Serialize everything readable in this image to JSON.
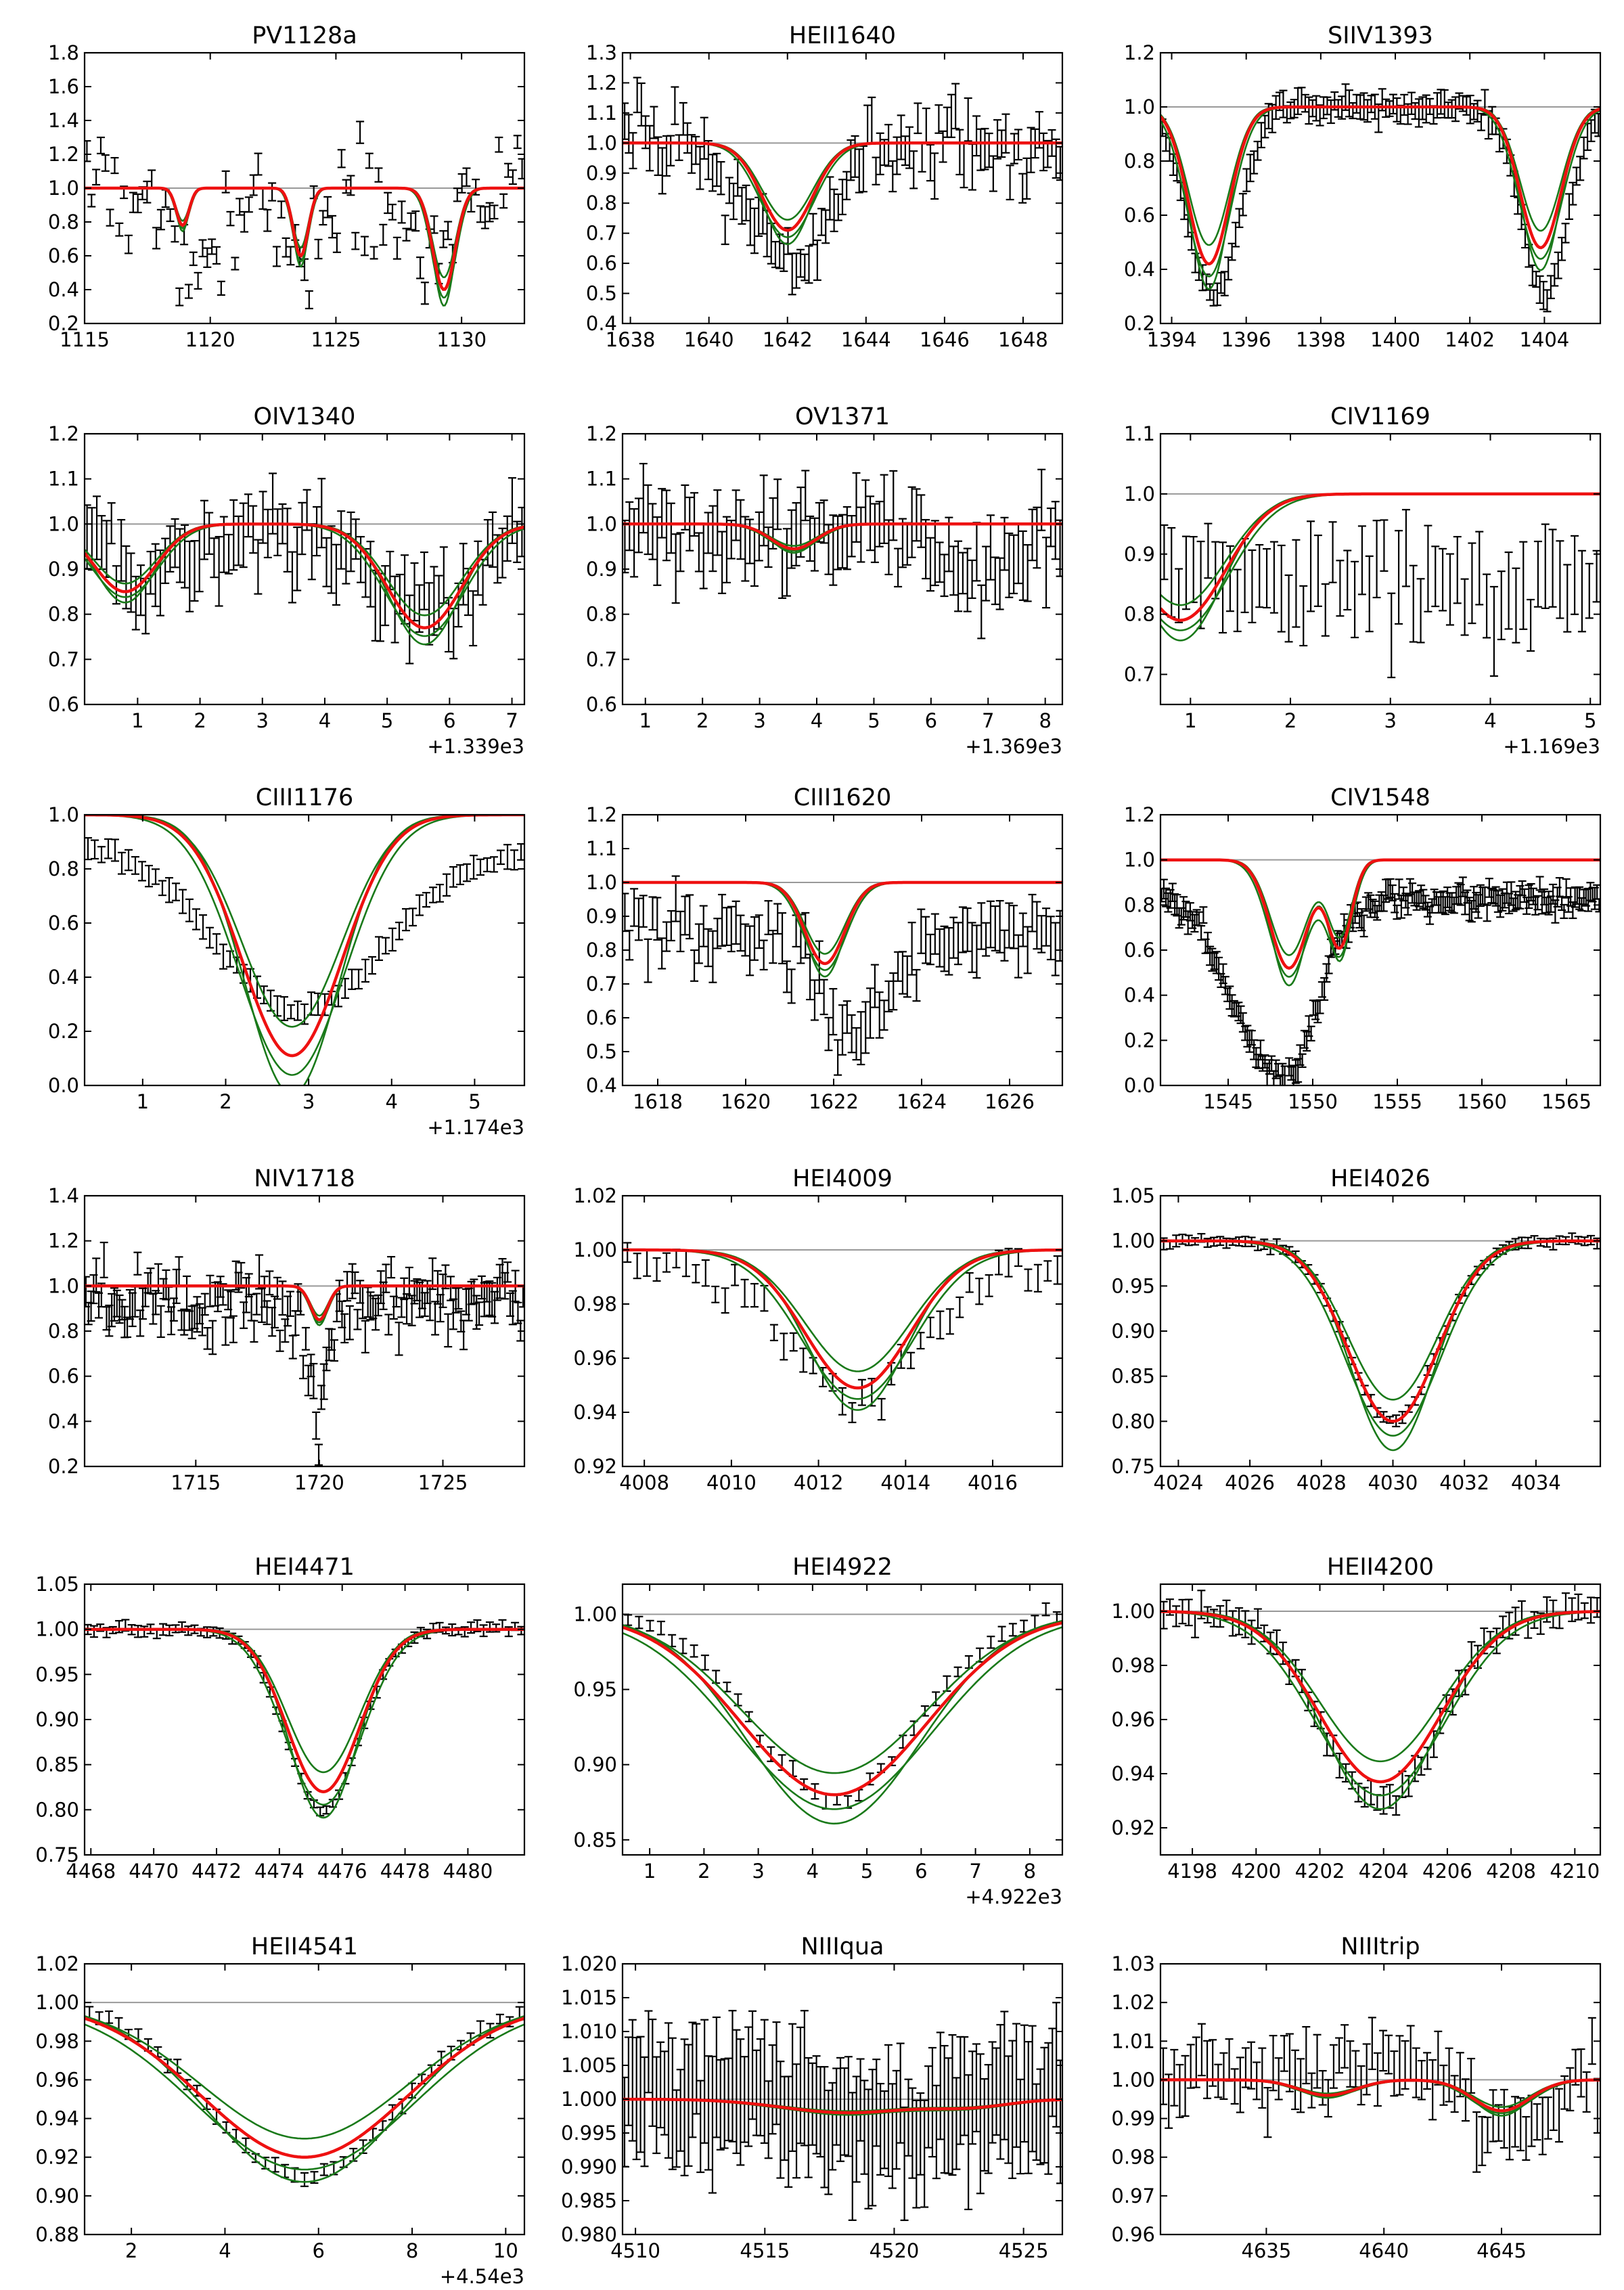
{
  "colors": {
    "data": "#000000",
    "model_best": "#ee1111",
    "model_alt": "#1a7a1a",
    "continuum": "#999999"
  },
  "chart_data": [
    {
      "type": "line",
      "title": "PV1128a",
      "xlim": [
        1115,
        1132.5
      ],
      "ylim": [
        0.2,
        1.8
      ],
      "xticks": [
        1115,
        1120,
        1125,
        1130
      ],
      "xtick_labels": [
        "1115",
        "1120",
        "1125",
        "1130"
      ],
      "yticks": [
        0.2,
        0.4,
        0.6,
        0.8,
        1.0,
        1.2,
        1.4,
        1.6,
        1.8
      ],
      "ytick_labels": [
        "0.2",
        "0.4",
        "0.6",
        "0.8",
        "1.0",
        "1.2",
        "1.4",
        "1.6",
        "1.8"
      ],
      "offset_label": "",
      "continuum": 1.0,
      "noise": 0.22,
      "err": 0.05,
      "n_points": 95,
      "lines": [
        {
          "center": 1118.9,
          "depth": 0.22,
          "width": 0.25
        },
        {
          "center": 1123.6,
          "depth": 0.4,
          "width": 0.3
        },
        {
          "center": 1129.3,
          "depth": 0.6,
          "width": 0.45
        }
      ],
      "data_lines": [
        {
          "center": 1119.3,
          "depth": 0.35,
          "width": 1.2
        },
        {
          "center": 1123.3,
          "depth": 0.45,
          "width": 0.8
        },
        {
          "center": 1128.5,
          "depth": 0.25,
          "width": 1.5
        }
      ]
    },
    {
      "type": "line",
      "title": "HEII1640",
      "xlim": [
        1637.8,
        1649
      ],
      "ylim": [
        0.4,
        1.3
      ],
      "xticks": [
        1638,
        1640,
        1642,
        1644,
        1646,
        1648
      ],
      "xtick_labels": [
        "1638",
        "1640",
        "1642",
        "1644",
        "1646",
        "1648"
      ],
      "yticks": [
        0.4,
        0.5,
        0.6,
        0.7,
        0.8,
        0.9,
        1.0,
        1.1,
        1.2,
        1.3
      ],
      "ytick_labels": [
        "0.4",
        "0.5",
        "0.6",
        "0.7",
        "0.8",
        "0.9",
        "1.0",
        "1.1",
        "1.2",
        "1.3"
      ],
      "offset_label": "",
      "continuum": 1.0,
      "noise": 0.09,
      "err": 0.06,
      "n_points": 105,
      "lines": [
        {
          "center": 1642.0,
          "depth": 0.29,
          "width": 0.65
        }
      ],
      "data_lines": [
        {
          "center": 1642.0,
          "depth": 0.4,
          "width": 1.0
        }
      ]
    },
    {
      "type": "line",
      "title": "SIIV1393",
      "xlim": [
        1393.7,
        1405.5
      ],
      "ylim": [
        0.2,
        1.2
      ],
      "xticks": [
        1394,
        1396,
        1398,
        1400,
        1402,
        1404
      ],
      "xtick_labels": [
        "1394",
        "1396",
        "1398",
        "1400",
        "1402",
        "1404"
      ],
      "yticks": [
        0.2,
        0.4,
        0.6,
        0.8,
        1.0,
        1.2
      ],
      "ytick_labels": [
        "0.2",
        "0.4",
        "0.6",
        "0.8",
        "1.0",
        "1.2"
      ],
      "offset_label": "",
      "continuum": 1.0,
      "noise": 0.025,
      "err": 0.04,
      "n_points": 120,
      "lines": [
        {
          "center": 1395.0,
          "depth": 0.58,
          "width": 0.55
        },
        {
          "center": 1403.9,
          "depth": 0.52,
          "width": 0.55
        }
      ],
      "data_lines": [
        {
          "center": 1395.1,
          "depth": 0.72,
          "width": 0.7
        },
        {
          "center": 1404.0,
          "depth": 0.68,
          "width": 0.6
        }
      ],
      "data_slope": -0.02
    },
    {
      "type": "line",
      "title": "OIV1340",
      "xlim": [
        0.15,
        7.2
      ],
      "ylim": [
        0.6,
        1.2
      ],
      "xticks": [
        1,
        2,
        3,
        4,
        5,
        6,
        7
      ],
      "xtick_labels": [
        "1",
        "2",
        "3",
        "4",
        "5",
        "6",
        "7"
      ],
      "yticks": [
        0.6,
        0.7,
        0.8,
        0.9,
        1.0,
        1.1,
        1.2
      ],
      "ytick_labels": [
        "0.6",
        "0.7",
        "0.8",
        "0.9",
        "1.0",
        "1.1",
        "1.2"
      ],
      "offset_label": "+1.339e3",
      "continuum": 1.0,
      "noise": 0.06,
      "err": 0.06,
      "n_points": 90,
      "lines": [
        {
          "center": 0.8,
          "depth": 0.15,
          "width": 0.5
        },
        {
          "center": 5.6,
          "depth": 0.23,
          "width": 0.6
        }
      ],
      "data_lines": [
        {
          "center": 1.2,
          "depth": 0.12,
          "width": 0.8
        },
        {
          "center": 5.6,
          "depth": 0.2,
          "width": 0.8
        }
      ]
    },
    {
      "type": "line",
      "title": "OV1371",
      "xlim": [
        0.6,
        8.3
      ],
      "ylim": [
        0.6,
        1.2
      ],
      "xticks": [
        1,
        2,
        3,
        4,
        5,
        6,
        7,
        8
      ],
      "xtick_labels": [
        "1",
        "2",
        "3",
        "4",
        "5",
        "6",
        "7",
        "8"
      ],
      "yticks": [
        0.6,
        0.7,
        0.8,
        0.9,
        1.0,
        1.1,
        1.2
      ],
      "ytick_labels": [
        "0.6",
        "0.7",
        "0.8",
        "0.9",
        "1.0",
        "1.1",
        "1.2"
      ],
      "offset_label": "+1.369e3",
      "continuum": 1.0,
      "noise": 0.05,
      "err": 0.06,
      "n_points": 95,
      "lines": [
        {
          "center": 3.6,
          "depth": 0.055,
          "width": 0.4
        }
      ],
      "data_lines": [
        {
          "center": 6.8,
          "depth": 0.1,
          "width": 0.8
        },
        {
          "center": 3.0,
          "depth": 0.04,
          "width": 0.8
        }
      ]
    },
    {
      "type": "line",
      "title": "CIV1169",
      "xlim": [
        0.7,
        5.1
      ],
      "ylim": [
        0.65,
        1.1
      ],
      "xticks": [
        1,
        2,
        3,
        4,
        5
      ],
      "xtick_labels": [
        "1",
        "2",
        "3",
        "4",
        "5"
      ],
      "yticks": [
        0.7,
        0.8,
        0.9,
        1.0,
        1.1
      ],
      "ytick_labels": [
        "0.7",
        "0.8",
        "0.9",
        "1.0",
        "1.1"
      ],
      "offset_label": "+1.169e3",
      "continuum": 1.0,
      "noise": 0.05,
      "err": 0.06,
      "n_points": 60,
      "lines": [
        {
          "center": 0.9,
          "depth": 0.21,
          "width": 0.45
        }
      ],
      "data_lines": [],
      "data_level": 0.84
    },
    {
      "type": "line",
      "title": "CIII1176",
      "xlim": [
        0.3,
        5.6
      ],
      "ylim": [
        0.0,
        1.0
      ],
      "xticks": [
        1,
        2,
        3,
        4,
        5
      ],
      "xtick_labels": [
        "1",
        "2",
        "3",
        "4",
        "5"
      ],
      "yticks": [
        0.0,
        0.2,
        0.4,
        0.6,
        0.8,
        1.0
      ],
      "ytick_labels": [
        "0.0",
        "0.2",
        "0.4",
        "0.6",
        "0.8",
        "1.0"
      ],
      "offset_label": "+1.174e3",
      "continuum": 1.0,
      "noise": 0.015,
      "err": 0.035,
      "n_points": 65,
      "lines": [
        {
          "center": 2.8,
          "depth": 0.89,
          "width": 0.6
        }
      ],
      "data_lines": [
        {
          "center": 2.9,
          "depth": 0.6,
          "width": 1.0
        }
      ],
      "data_level": 0.88,
      "data_slope": -0.02
    },
    {
      "type": "line",
      "title": "CIII1620",
      "xlim": [
        1617.2,
        1627.2
      ],
      "ylim": [
        0.4,
        1.2
      ],
      "xticks": [
        1618,
        1620,
        1622,
        1624,
        1626
      ],
      "xtick_labels": [
        "1618",
        "1620",
        "1622",
        "1624",
        "1626"
      ],
      "yticks": [
        0.4,
        0.5,
        0.6,
        0.7,
        0.8,
        0.9,
        1.0,
        1.1,
        1.2
      ],
      "ytick_labels": [
        "0.4",
        "0.5",
        "0.6",
        "0.7",
        "0.8",
        "0.9",
        "1.0",
        "1.1",
        "1.2"
      ],
      "offset_label": "",
      "continuum": 1.0,
      "noise": 0.07,
      "err": 0.06,
      "n_points": 95,
      "lines": [
        {
          "center": 1621.8,
          "depth": 0.24,
          "width": 0.45
        }
      ],
      "data_lines": [
        {
          "center": 1622.5,
          "depth": 0.3,
          "width": 0.8
        }
      ],
      "data_level": 0.85
    },
    {
      "type": "line",
      "title": "CIV1548",
      "xlim": [
        1541,
        1567
      ],
      "ylim": [
        0.0,
        1.2
      ],
      "xticks": [
        1545,
        1550,
        1555,
        1560,
        1565
      ],
      "xtick_labels": [
        "1545",
        "1550",
        "1555",
        "1560",
        "1565"
      ],
      "yticks": [
        0.0,
        0.2,
        0.4,
        0.6,
        0.8,
        1.0,
        1.2
      ],
      "ytick_labels": [
        "0.0",
        "0.2",
        "0.4",
        "0.6",
        "0.8",
        "1.0",
        "1.2"
      ],
      "offset_label": "",
      "continuum": 1.0,
      "noise": 0.04,
      "err": 0.04,
      "n_points": 200,
      "lines": [
        {
          "center": 1548.6,
          "depth": 0.48,
          "width": 1.1
        },
        {
          "center": 1551.6,
          "depth": 0.38,
          "width": 0.7
        }
      ],
      "data_lines": [
        {
          "center": 1548.5,
          "depth": 0.75,
          "width": 1.8
        },
        {
          "center": 1545.5,
          "depth": 0.3,
          "width": 1.5
        }
      ],
      "data_level": 0.82
    },
    {
      "type": "line",
      "title": "NIV1718",
      "xlim": [
        1710.5,
        1728.3
      ],
      "ylim": [
        0.2,
        1.4
      ],
      "xticks": [
        1715,
        1720,
        1725
      ],
      "xtick_labels": [
        "1715",
        "1720",
        "1725"
      ],
      "yticks": [
        0.2,
        0.4,
        0.6,
        0.8,
        1.0,
        1.2,
        1.4
      ],
      "ytick_labels": [
        "0.2",
        "0.4",
        "0.6",
        "0.8",
        "1.0",
        "1.2",
        "1.4"
      ],
      "offset_label": "",
      "continuum": 1.0,
      "noise": 0.11,
      "err": 0.06,
      "n_points": 170,
      "lines": [
        {
          "center": 1720.0,
          "depth": 0.15,
          "width": 0.35
        }
      ],
      "data_lines": [
        {
          "center": 1719.9,
          "depth": 0.45,
          "width": 0.35
        }
      ],
      "data_level": 0.92
    },
    {
      "type": "line",
      "title": "HEI4009",
      "xlim": [
        4007.5,
        4017.6
      ],
      "ylim": [
        0.92,
        1.02
      ],
      "xticks": [
        4008,
        4010,
        4012,
        4014,
        4016
      ],
      "xtick_labels": [
        "4008",
        "4010",
        "4012",
        "4014",
        "4016"
      ],
      "yticks": [
        0.92,
        0.94,
        0.96,
        0.98,
        1.0,
        1.02
      ],
      "ytick_labels": [
        "0.92",
        "0.94",
        "0.96",
        "0.98",
        "1.00",
        "1.02"
      ],
      "offset_label": "",
      "continuum": 1.0,
      "noise": 0.004,
      "err": 0.004,
      "n_points": 45,
      "lines": [
        {
          "center": 4012.9,
          "depth": 0.051,
          "width": 1.2
        }
      ],
      "data_lines": [
        {
          "center": 4012.9,
          "depth": 0.05,
          "width": 1.4
        }
      ],
      "data_level": 0.993
    },
    {
      "type": "line",
      "title": "HEI4026",
      "xlim": [
        4023.5,
        4035.8
      ],
      "ylim": [
        0.75,
        1.05
      ],
      "xticks": [
        4024,
        4026,
        4028,
        4030,
        4032,
        4034
      ],
      "xtick_labels": [
        "4024",
        "4026",
        "4028",
        "4030",
        "4032",
        "4034"
      ],
      "yticks": [
        0.75,
        0.8,
        0.85,
        0.9,
        0.95,
        1.0,
        1.05
      ],
      "ytick_labels": [
        "0.75",
        "0.80",
        "0.85",
        "0.90",
        "0.95",
        "1.00",
        "1.05"
      ],
      "offset_label": "",
      "continuum": 1.0,
      "noise": 0.003,
      "err": 0.005,
      "n_points": 70,
      "lines": [
        {
          "center": 4030.0,
          "depth": 0.2,
          "width": 1.25
        }
      ],
      "data_lines": [
        {
          "center": 4030.0,
          "depth": 0.2,
          "width": 1.25
        }
      ]
    },
    {
      "type": "line",
      "title": "HEI4471",
      "xlim": [
        4467.8,
        4481.8
      ],
      "ylim": [
        0.75,
        1.05
      ],
      "xticks": [
        4468,
        4470,
        4472,
        4474,
        4476,
        4478,
        4480
      ],
      "xtick_labels": [
        "4468",
        "4470",
        "4472",
        "4474",
        "4476",
        "4478",
        "4480"
      ],
      "yticks": [
        0.75,
        0.8,
        0.85,
        0.9,
        0.95,
        1.0,
        1.05
      ],
      "ytick_labels": [
        "0.75",
        "0.80",
        "0.85",
        "0.90",
        "0.95",
        "1.00",
        "1.05"
      ],
      "offset_label": "",
      "continuum": 1.0,
      "noise": 0.003,
      "err": 0.005,
      "n_points": 70,
      "lines": [
        {
          "center": 4475.4,
          "depth": 0.18,
          "width": 1.15
        }
      ],
      "data_lines": [
        {
          "center": 4475.4,
          "depth": 0.2,
          "width": 1.15
        }
      ]
    },
    {
      "type": "line",
      "title": "HEI4922",
      "xlim": [
        0.5,
        8.6
      ],
      "ylim": [
        0.84,
        1.02
      ],
      "xticks": [
        1,
        2,
        3,
        4,
        5,
        6,
        7,
        8
      ],
      "xtick_labels": [
        "1",
        "2",
        "3",
        "4",
        "5",
        "6",
        "7",
        "8"
      ],
      "yticks": [
        0.85,
        0.9,
        0.95,
        1.0
      ],
      "ytick_labels": [
        "0.85",
        "0.90",
        "0.95",
        "1.00"
      ],
      "offset_label": "+4.922e3",
      "continuum": 1.0,
      "noise": 0.003,
      "err": 0.004,
      "n_points": 40,
      "lines": [
        {
          "center": 4.4,
          "depth": 0.12,
          "width": 1.7
        }
      ],
      "data_lines": [
        {
          "center": 4.4,
          "depth": 0.125,
          "width": 1.5
        }
      ],
      "data_level": 1.002
    },
    {
      "type": "line",
      "title": "HEII4200",
      "xlim": [
        4197,
        4210.8
      ],
      "ylim": [
        0.91,
        1.01
      ],
      "xticks": [
        4198,
        4200,
        4202,
        4204,
        4206,
        4208,
        4210
      ],
      "xtick_labels": [
        "4198",
        "4200",
        "4202",
        "4204",
        "4206",
        "4208",
        "4210"
      ],
      "yticks": [
        0.92,
        0.94,
        0.96,
        0.98,
        1.0
      ],
      "ytick_labels": [
        "0.92",
        "0.94",
        "0.96",
        "0.98",
        "1.00"
      ],
      "offset_label": "",
      "continuum": 1.0,
      "noise": 0.003,
      "err": 0.004,
      "n_points": 70,
      "lines": [
        {
          "center": 4203.9,
          "depth": 0.063,
          "width": 1.9
        }
      ],
      "data_lines": [
        {
          "center": 4203.9,
          "depth": 0.07,
          "width": 1.8
        }
      ]
    },
    {
      "type": "line",
      "title": "HEII4541",
      "xlim": [
        1,
        10.4
      ],
      "ylim": [
        0.88,
        1.02
      ],
      "xticks": [
        2,
        4,
        6,
        8,
        10
      ],
      "xtick_labels": [
        "2",
        "4",
        "6",
        "8",
        "10"
      ],
      "yticks": [
        0.88,
        0.9,
        0.92,
        0.94,
        0.96,
        0.98,
        1.0,
        1.02
      ],
      "ytick_labels": [
        "0.88",
        "0.90",
        "0.92",
        "0.94",
        "0.96",
        "0.98",
        "1.00",
        "1.02"
      ],
      "offset_label": "+4.54e3",
      "continuum": 1.0,
      "noise": 0.002,
      "err": 0.003,
      "n_points": 45,
      "lines": [
        {
          "center": 5.7,
          "depth": 0.08,
          "width": 2.2
        }
      ],
      "data_lines": [
        {
          "center": 5.7,
          "depth": 0.09,
          "width": 2.0
        }
      ]
    },
    {
      "type": "line",
      "title": "NIIIqua",
      "xlim": [
        4509.5,
        4526.5
      ],
      "ylim": [
        0.98,
        1.02
      ],
      "xticks": [
        4510,
        4515,
        4520,
        4525
      ],
      "xtick_labels": [
        "4510",
        "4515",
        "4520",
        "4525"
      ],
      "yticks": [
        0.98,
        0.985,
        0.99,
        0.995,
        1.0,
        1.005,
        1.01,
        1.015,
        1.02
      ],
      "ytick_labels": [
        "0.980",
        "0.985",
        "0.990",
        "0.995",
        "1.000",
        "1.005",
        "1.010",
        "1.015",
        "1.020"
      ],
      "offset_label": "",
      "continuum": 1.0,
      "noise": 0.004,
      "err": 0.008,
      "n_points": 110,
      "lines": [
        {
          "center": 4518.2,
          "depth": 0.002,
          "width": 2.5
        },
        {
          "center": 4523.0,
          "depth": 0.001,
          "width": 1.5
        }
      ],
      "data_lines": [
        {
          "center": 4520.0,
          "depth": 0.005,
          "width": 2.0
        }
      ]
    },
    {
      "type": "line",
      "title": "NIIItrip",
      "xlim": [
        4630.5,
        4649.2
      ],
      "ylim": [
        0.96,
        1.03
      ],
      "xticks": [
        4635,
        4640,
        4645
      ],
      "xtick_labels": [
        "4635",
        "4640",
        "4645"
      ],
      "yticks": [
        0.96,
        0.97,
        0.98,
        0.99,
        1.0,
        1.01,
        1.02,
        1.03
      ],
      "ytick_labels": [
        "0.96",
        "0.97",
        "0.98",
        "0.99",
        "1.00",
        "1.01",
        "1.02",
        "1.03"
      ],
      "offset_label": "",
      "continuum": 1.0,
      "noise": 0.005,
      "err": 0.006,
      "n_points": 80,
      "lines": [
        {
          "center": 4637.6,
          "depth": 0.004,
          "width": 1.2
        },
        {
          "center": 4645.0,
          "depth": 0.008,
          "width": 1.2
        }
      ],
      "data_lines": [
        {
          "center": 4645.5,
          "depth": 0.015,
          "width": 1.3
        },
        {
          "center": 4640.0,
          "depth": -0.006,
          "width": 1.2
        }
      ]
    }
  ]
}
